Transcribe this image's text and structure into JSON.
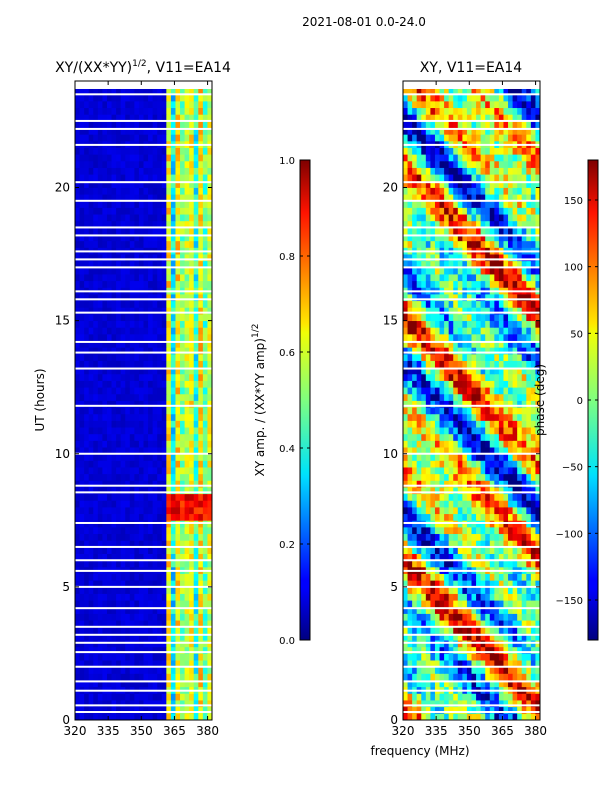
{
  "figure": {
    "suptitle": "2021-08-01 0.0-24.0",
    "xlabel_shared": "frequency (MHz)"
  },
  "chart_data": [
    {
      "type": "heatmap",
      "title": "XY/(XX*YY)",
      "title_sup": "1/2",
      "title_tail": ", V11=EA14",
      "ylabel": "UT (hours)",
      "xlim": [
        320,
        382
      ],
      "ylim": [
        0,
        24
      ],
      "xticks": [
        320,
        335,
        350,
        365,
        380
      ],
      "yticks": [
        0,
        5,
        10,
        15,
        20
      ],
      "colormap": "jet",
      "colorbar": {
        "label_main": "XY amp. / (XX*YY amp)",
        "label_sup": "1/2",
        "range": [
          0.0,
          1.0
        ],
        "ticks": [
          "0.0",
          "0.2",
          "0.4",
          "0.6",
          "0.8",
          "1.0"
        ]
      }
    },
    {
      "type": "heatmap",
      "title": "XY, V11=EA14",
      "ylabel": "",
      "xlim": [
        320,
        382
      ],
      "ylim": [
        0,
        24
      ],
      "xticks": [
        320,
        335,
        350,
        365,
        380
      ],
      "yticks": [
        0,
        5,
        10,
        15,
        20
      ],
      "colormap": "jet",
      "colorbar": {
        "label_main": "phase (deg)",
        "range": [
          -180,
          180
        ],
        "ticks": [
          "−150",
          "−100",
          "−50",
          "0",
          "50",
          "100",
          "150"
        ]
      }
    }
  ],
  "colors": {
    "cmap_dark_blue": "#00007f",
    "cmap_blue": "#0000ff",
    "cmap_cyan": "#00ffff",
    "cmap_green": "#7fff7f",
    "cmap_yellow": "#ffff00",
    "cmap_red": "#ff0000",
    "cmap_dark_red": "#7f0000"
  }
}
